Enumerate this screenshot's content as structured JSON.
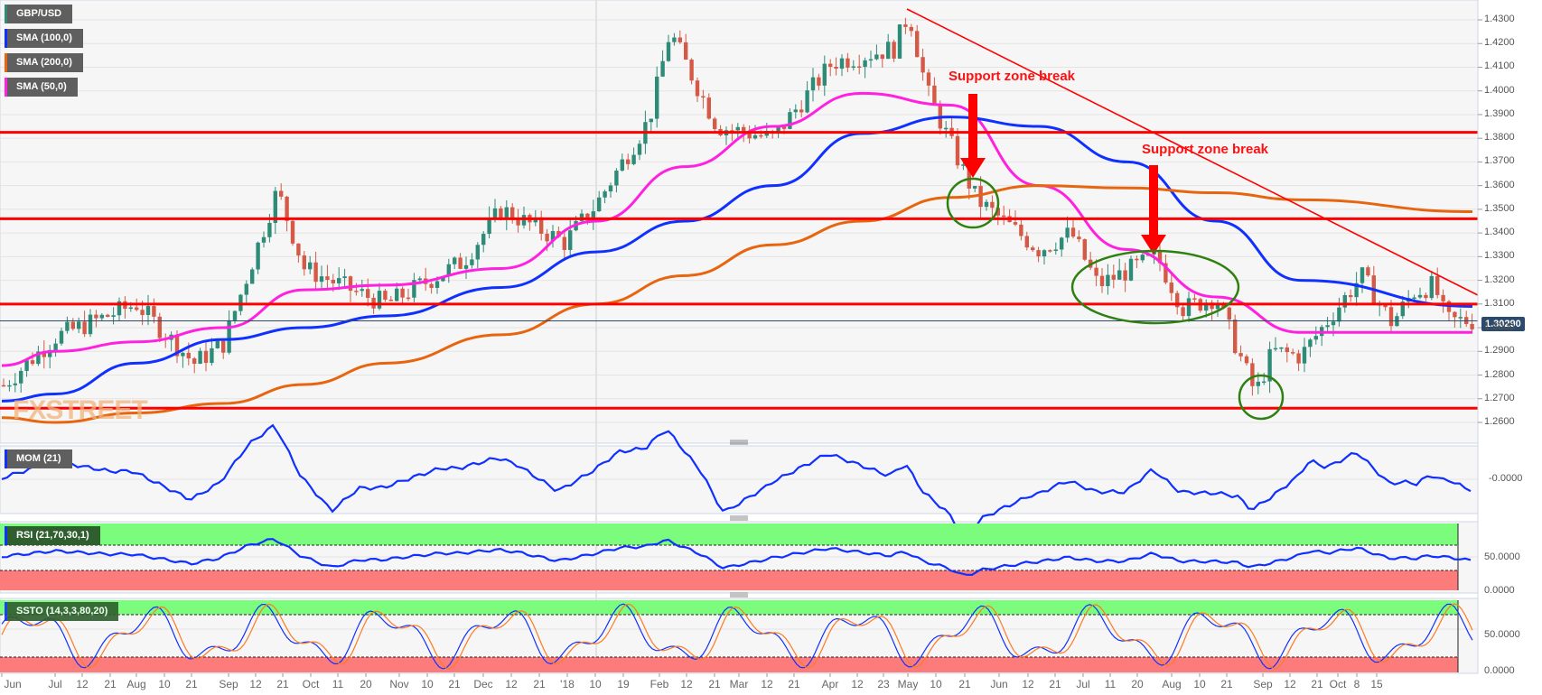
{
  "chart_data": {
    "type": "candlestick",
    "title": "GBP/USD",
    "symbol": "GBP/USD",
    "current_price_label": "1.30290",
    "legend": [
      {
        "label": "GBP/USD",
        "color": "#2e8b78"
      },
      {
        "label": "SMA (100,0)",
        "color": "#1030ff"
      },
      {
        "label": "SMA (200,0)",
        "color": "#e8650f"
      },
      {
        "label": "SMA (50,0)",
        "color": "#ff20e0"
      }
    ],
    "y_axis": {
      "ticks": [
        "1.4300",
        "1.4200",
        "1.4100",
        "1.4000",
        "1.3900",
        "1.3800",
        "1.3700",
        "1.3600",
        "1.3500",
        "1.3400",
        "1.3300",
        "1.3200",
        "1.3100",
        "1.3000",
        "1.2900",
        "1.2800",
        "1.2700",
        "1.2600"
      ],
      "range": [
        1.255,
        1.437
      ]
    },
    "x_axis": {
      "ticks": [
        "Jun",
        "Jul",
        "12",
        "21",
        "Aug",
        "10",
        "21",
        "Sep",
        "12",
        "21",
        "Oct",
        "11",
        "20",
        "Nov",
        "10",
        "21",
        "Dec",
        "12",
        "21",
        "'18",
        "10",
        "19",
        "Feb",
        "12",
        "21",
        "Mar",
        "12",
        "21",
        "Apr",
        "12",
        "23",
        "May",
        "10",
        "21",
        "Jun",
        "12",
        "21",
        "Jul",
        "11",
        "20",
        "Aug",
        "10",
        "21",
        "Sep",
        "12",
        "21",
        "Oct",
        "8",
        "15"
      ]
    },
    "horizontal_levels": [
      1.3825,
      1.346,
      1.31,
      1.266
    ],
    "trendline": {
      "from": {
        "date": "Apr 17 2018",
        "price": 1.435
      },
      "to": {
        "date": "Oct 19 2018",
        "price": 1.314
      }
    },
    "annotations": [
      {
        "text": "Support zone break",
        "date": "May 2018",
        "arrow_target": 1.36
      },
      {
        "text": "Support zone break",
        "date": "Jul 2018",
        "arrow_target": 1.332
      }
    ],
    "highlight_circles": [
      {
        "date": "May 10 2018",
        "price": 1.353
      },
      {
        "date": "Jul 2018",
        "price": 1.315
      },
      {
        "date": "Aug 15 2018",
        "price": 1.273
      }
    ],
    "series": [
      {
        "name": "SMA (50,0)",
        "color": "#ff20e0",
        "points": [
          [
            "Jun 2017",
            1.284
          ],
          [
            "Jul 2017",
            1.29
          ],
          [
            "Aug 2017",
            1.294
          ],
          [
            "Sep 2017",
            1.3
          ],
          [
            "Oct 2017",
            1.316
          ],
          [
            "Nov 2017",
            1.318
          ],
          [
            "Dec 2017",
            1.325
          ],
          [
            "Jan 2018",
            1.345
          ],
          [
            "Feb 2018",
            1.368
          ],
          [
            "Mar 2018",
            1.385
          ],
          [
            "Apr 2018",
            1.399
          ],
          [
            "May 2018",
            1.394
          ],
          [
            "Jun 2018",
            1.36
          ],
          [
            "Jul 2018",
            1.333
          ],
          [
            "Aug 2018",
            1.313
          ],
          [
            "Sep 2018",
            1.298
          ],
          [
            "Oct 2018",
            1.298
          ]
        ]
      },
      {
        "name": "SMA (100,0)",
        "color": "#1030ff",
        "points": [
          [
            "Jun 2017",
            1.269
          ],
          [
            "Jul 2017",
            1.272
          ],
          [
            "Aug 2017",
            1.285
          ],
          [
            "Sep 2017",
            1.295
          ],
          [
            "Oct 2017",
            1.3
          ],
          [
            "Nov 2017",
            1.305
          ],
          [
            "Dec 2017",
            1.317
          ],
          [
            "Jan 2018",
            1.332
          ],
          [
            "Feb 2018",
            1.345
          ],
          [
            "Mar 2018",
            1.36
          ],
          [
            "Apr 2018",
            1.382
          ],
          [
            "May 2018",
            1.389
          ],
          [
            "Jun 2018",
            1.385
          ],
          [
            "Jul 2018",
            1.37
          ],
          [
            "Aug 2018",
            1.345
          ],
          [
            "Sep 2018",
            1.32
          ],
          [
            "Oct 2018",
            1.309
          ]
        ]
      },
      {
        "name": "SMA (200,0)",
        "color": "#e8650f",
        "points": [
          [
            "Jun 2017",
            1.262
          ],
          [
            "Jul 2017",
            1.26
          ],
          [
            "Aug 2017",
            1.264
          ],
          [
            "Sep 2017",
            1.268
          ],
          [
            "Oct 2017",
            1.276
          ],
          [
            "Nov 2017",
            1.285
          ],
          [
            "Dec 2017",
            1.297
          ],
          [
            "Jan 2018",
            1.31
          ],
          [
            "Feb 2018",
            1.322
          ],
          [
            "Mar 2018",
            1.335
          ],
          [
            "Apr 2018",
            1.345
          ],
          [
            "May 2018",
            1.355
          ],
          [
            "Jun 2018",
            1.36
          ],
          [
            "Jul 2018",
            1.359
          ],
          [
            "Aug 2018",
            1.357
          ],
          [
            "Sep 2018",
            1.354
          ],
          [
            "Oct 2018",
            1.349
          ]
        ]
      },
      {
        "name": "GBP/USD close (approx)",
        "points": [
          [
            "Jun 2017",
            1.275
          ],
          [
            "Jul 2017",
            1.296
          ],
          [
            "Aug 2017",
            1.31
          ],
          [
            "Aug 21 2017",
            1.285
          ],
          [
            "Sep 2017",
            1.293
          ],
          [
            "Sep 21 2017",
            1.358
          ],
          [
            "Oct 2017",
            1.325
          ],
          [
            "Oct 20 2017",
            1.315
          ],
          [
            "Nov 2017",
            1.31
          ],
          [
            "Nov 21 2017",
            1.328
          ],
          [
            "Dec 2017",
            1.35
          ],
          [
            "Dec 21 2017",
            1.336
          ],
          [
            "Jan 2018",
            1.352
          ],
          [
            "Jan 19 2018",
            1.388
          ],
          [
            "Jan 26 2018",
            1.425
          ],
          [
            "Feb 12 2018",
            1.385
          ],
          [
            "Mar 2018",
            1.38
          ],
          [
            "Mar 21 2018",
            1.412
          ],
          [
            "Apr 12 2018",
            1.418
          ],
          [
            "Apr 17 2018",
            1.433
          ],
          [
            "Apr 23 2018",
            1.4
          ],
          [
            "May 2018",
            1.378
          ],
          [
            "May 10 2018",
            1.354
          ],
          [
            "Jun 2018",
            1.333
          ],
          [
            "Jun 12 2018",
            1.34
          ],
          [
            "Jun 21 2018",
            1.318
          ],
          [
            "Jul 11 2018",
            1.33
          ],
          [
            "Jul 20 2018",
            1.308
          ],
          [
            "Aug 2018",
            1.313
          ],
          [
            "Aug 15 2018",
            1.272
          ],
          [
            "Aug 21 2018",
            1.29
          ],
          [
            "Sep 2018",
            1.288
          ],
          [
            "Sep 21 2018",
            1.322
          ],
          [
            "Oct 2018",
            1.302
          ],
          [
            "Oct 8 2018",
            1.315
          ],
          [
            "Oct 15 2018",
            1.318
          ],
          [
            "Oct 19 2018",
            1.3029
          ]
        ]
      }
    ],
    "indicators": [
      {
        "name": "MOM (21)",
        "axis_label": "-0.0000",
        "color": "#1030ff"
      },
      {
        "name": "RSI (21,70,30,1)",
        "axis_labels": [
          "50.0000",
          "0.0000"
        ],
        "overbought": 70,
        "oversold": 30,
        "color": "#1030ff"
      },
      {
        "name": "SSTO (14,3,3,80,20)",
        "axis_labels": [
          "50.0000",
          "0.0000"
        ],
        "overbought": 80,
        "oversold": 20,
        "colors": [
          "#1030ff",
          "#ff7a20"
        ]
      }
    ],
    "grid": true,
    "legend_position": "top-left"
  },
  "ui": {
    "annotation_1": "Support zone break",
    "annotation_2": "Support zone break",
    "watermark": "FXSTREET",
    "price_tag": "1.30290",
    "mom_axis": "-0.0000",
    "rsi_axis_50": "50.0000",
    "rsi_axis_0": "0.0000",
    "ssto_axis_50": "50.0000",
    "ssto_axis_0": "0.0000"
  },
  "colors": {
    "bull": "#2e8b78",
    "bear": "#d45a47",
    "level": "#ff0000",
    "circle": "#2e8010",
    "ob_zone": "#7cfc7c",
    "os_zone": "#fc7c7c",
    "panel_bg": "#f6f6f6"
  }
}
